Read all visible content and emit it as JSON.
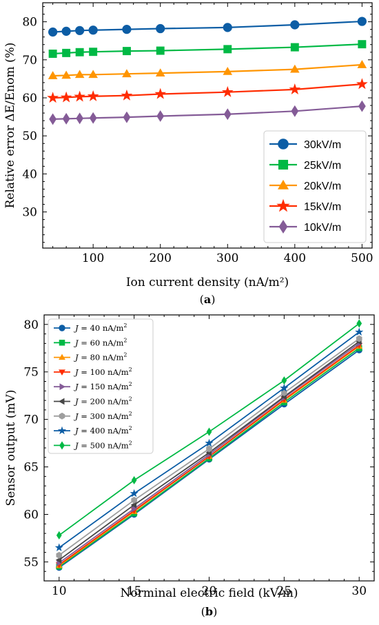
{
  "chart_data": [
    {
      "type": "line",
      "caption_letter": "a",
      "xlabel": "Ion current density (nA/m²)",
      "ylabel": "Relative error ΔE/Enom (%)",
      "xlim": [
        25,
        515
      ],
      "ylim": [
        20.5,
        85
      ],
      "x_ticks": [
        100,
        200,
        300,
        400,
        500
      ],
      "y_ticks": [
        30,
        40,
        50,
        60,
        70,
        80
      ],
      "legend_position": "lower-right",
      "grid": false,
      "x": [
        40,
        60,
        80,
        100,
        150,
        200,
        300,
        400,
        500
      ],
      "series": [
        {
          "name": "30kV/m",
          "color": "#0c5da5",
          "marker": "circle",
          "values": [
            77.3,
            77.5,
            77.7,
            77.8,
            78.0,
            78.2,
            78.5,
            79.2,
            80.1
          ]
        },
        {
          "name": "25kV/m",
          "color": "#00b945",
          "marker": "square",
          "values": [
            71.6,
            71.8,
            72.0,
            72.1,
            72.3,
            72.4,
            72.8,
            73.3,
            74.1
          ]
        },
        {
          "name": "20kV/m",
          "color": "#ff9500",
          "marker": "triangle-up",
          "values": [
            65.8,
            65.9,
            66.1,
            66.1,
            66.3,
            66.5,
            66.9,
            67.5,
            68.7
          ]
        },
        {
          "name": "15kV/m",
          "color": "#ff2c00",
          "marker": "star",
          "values": [
            60.0,
            60.1,
            60.3,
            60.4,
            60.6,
            61.0,
            61.5,
            62.2,
            63.6
          ]
        },
        {
          "name": "10kV/m",
          "color": "#845b97",
          "marker": "diamond",
          "values": [
            54.4,
            54.5,
            54.6,
            54.7,
            54.9,
            55.2,
            55.7,
            56.5,
            57.8
          ]
        }
      ]
    },
    {
      "type": "line",
      "caption_letter": "b",
      "xlabel": "Norminal electric field (kV/m)",
      "ylabel": "Sensor output (mV)",
      "xlim": [
        9,
        31
      ],
      "ylim": [
        53,
        81
      ],
      "x_ticks": [
        10,
        15,
        20,
        25,
        30
      ],
      "y_ticks": [
        55,
        60,
        65,
        70,
        75,
        80
      ],
      "legend_position": "top-left",
      "grid": false,
      "x": [
        10,
        15,
        20,
        25,
        30
      ],
      "series": [
        {
          "name_math": "J",
          "name_eq": " = 40 nA/m",
          "name_sup": "2",
          "color": "#0c5da5",
          "marker": "circle",
          "values": [
            54.4,
            60.0,
            65.8,
            71.6,
            77.3
          ]
        },
        {
          "name_math": "J",
          "name_eq": " = 60 nA/m",
          "name_sup": "2",
          "color": "#00b945",
          "marker": "square",
          "values": [
            54.5,
            60.1,
            65.9,
            71.8,
            77.5
          ]
        },
        {
          "name_math": "J",
          "name_eq": " = 80 nA/m",
          "name_sup": "2",
          "color": "#ff9500",
          "marker": "triangle-up",
          "values": [
            54.6,
            60.3,
            66.1,
            72.0,
            77.7
          ]
        },
        {
          "name_math": "J",
          "name_eq": " = 100 nA/m",
          "name_sup": "2",
          "color": "#ff2c00",
          "marker": "triangle-down",
          "values": [
            54.7,
            60.4,
            66.1,
            72.1,
            77.8
          ]
        },
        {
          "name_math": "J",
          "name_eq": " = 150 nA/m",
          "name_sup": "2",
          "color": "#845b97",
          "marker": "triangle-right",
          "values": [
            54.9,
            60.6,
            66.3,
            72.3,
            78.0
          ]
        },
        {
          "name_math": "J",
          "name_eq": " = 200 nA/m",
          "name_sup": "2",
          "color": "#474747",
          "marker": "triangle-left",
          "values": [
            55.2,
            61.0,
            66.5,
            72.4,
            78.2
          ]
        },
        {
          "name_math": "J",
          "name_eq": " = 300 nA/m",
          "name_sup": "2",
          "color": "#9e9e9e",
          "marker": "hexagon",
          "values": [
            55.7,
            61.5,
            66.9,
            72.8,
            78.5
          ]
        },
        {
          "name_math": "J",
          "name_eq": " = 400 nA/m",
          "name_sup": "2",
          "color": "#0c5da5",
          "marker": "star",
          "values": [
            56.5,
            62.2,
            67.5,
            73.3,
            79.2
          ]
        },
        {
          "name_math": "J",
          "name_eq": " = 500 nA/m",
          "name_sup": "2",
          "color": "#00b945",
          "marker": "diamond",
          "values": [
            57.8,
            63.6,
            68.7,
            74.1,
            80.1
          ]
        }
      ]
    }
  ]
}
